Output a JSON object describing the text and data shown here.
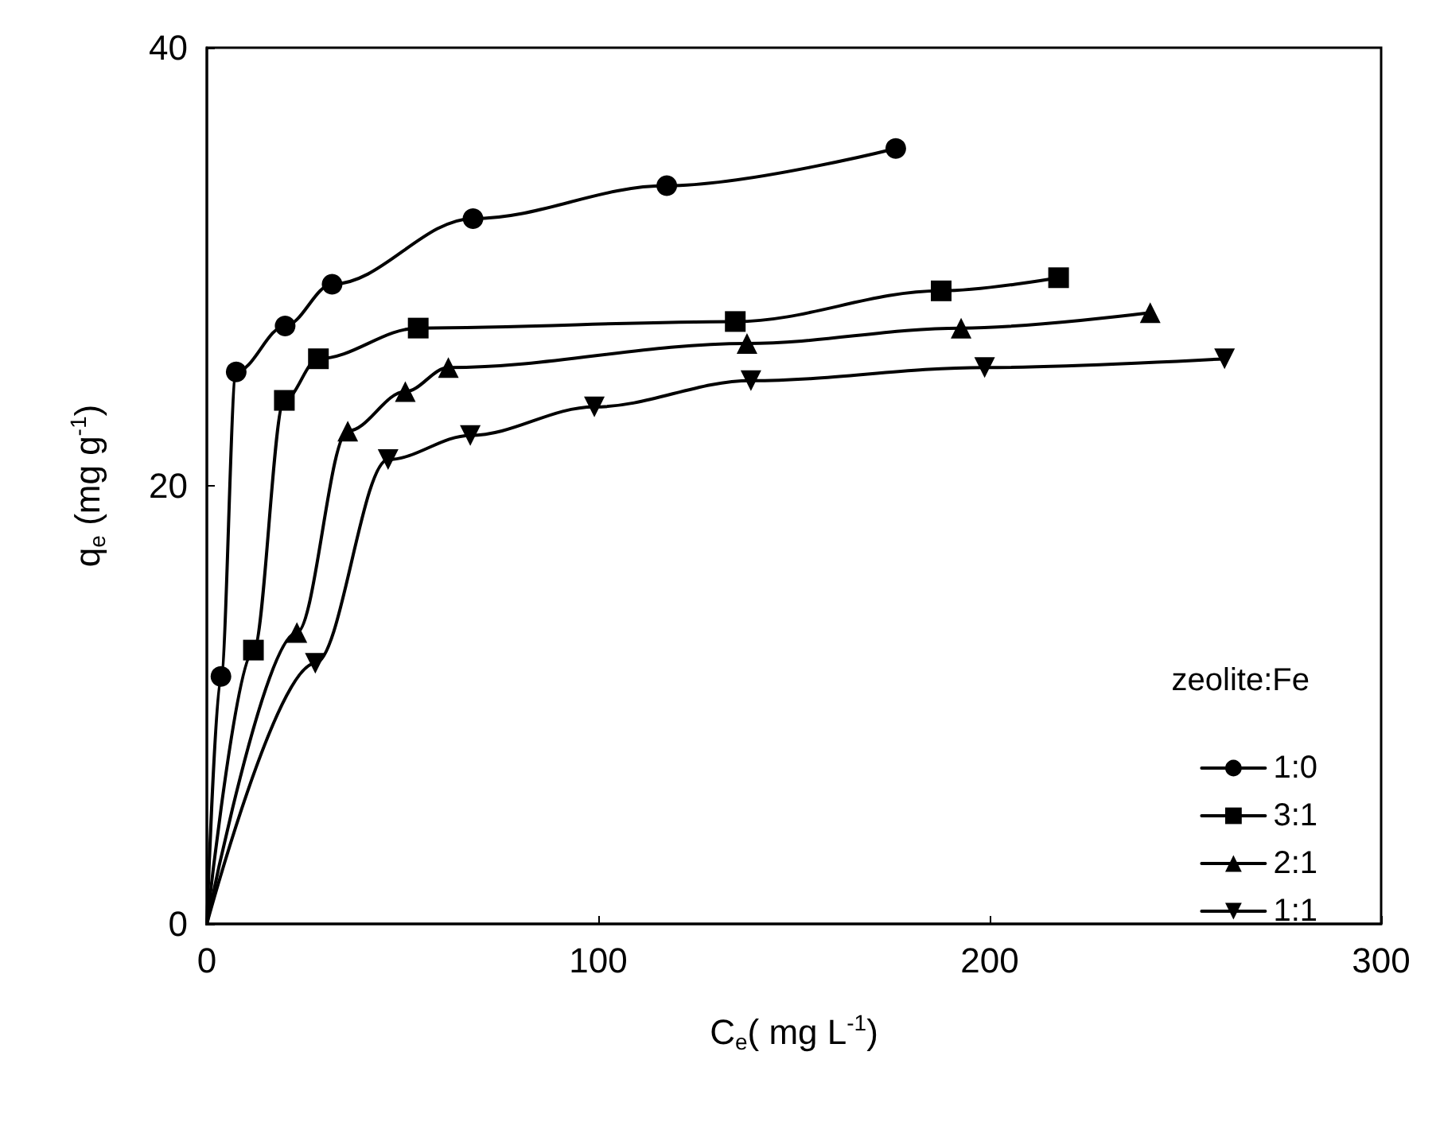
{
  "chart_data": {
    "type": "line",
    "xlabel": "C$_{e}$( mg L$^{-1}$)",
    "ylabel": "q$_{e}$ (mg g$^{-1}$)",
    "legend_title": "zeolite:Fe",
    "legend": "bottom right",
    "grid": false,
    "line_style": "solid",
    "xlim": [
      0,
      300
    ],
    "xticks": [
      0,
      100,
      200,
      300
    ],
    "ylim": [
      0,
      40
    ],
    "yticks": [
      0,
      20,
      40
    ],
    "series": [
      {
        "name": "1:0",
        "color": "#000000",
        "marker": "circle",
        "x": [
          0,
          3.6,
          7.5,
          20,
          32,
          68,
          117.5,
          176
        ],
        "values": [
          0,
          11.3,
          25.2,
          27.3,
          29.2,
          32.2,
          33.7,
          35.4
        ]
      },
      {
        "name": "3:1",
        "color": "#000000",
        "marker": "square",
        "x": [
          0,
          11.9,
          19.8,
          28.5,
          54,
          135,
          187.6,
          217.6
        ],
        "values": [
          0,
          12.5,
          23.9,
          25.8,
          27.2,
          27.5,
          28.9,
          29.5
        ]
      },
      {
        "name": "2:1",
        "color": "#000000",
        "marker": "triangle",
        "x": [
          0,
          23,
          36,
          50.7,
          61.7,
          138,
          192.7,
          241
        ],
        "values": [
          0,
          13.3,
          22.5,
          24.3,
          25.4,
          26.5,
          27.2,
          27.9
        ]
      },
      {
        "name": "1:1",
        "color": "#000000",
        "marker": "triangle-down",
        "x": [
          0,
          27.7,
          46.3,
          67.3,
          99,
          139,
          198.7,
          260
        ],
        "values": [
          0,
          11.9,
          21.2,
          22.3,
          23.6,
          24.8,
          25.4,
          25.8
        ]
      }
    ]
  }
}
